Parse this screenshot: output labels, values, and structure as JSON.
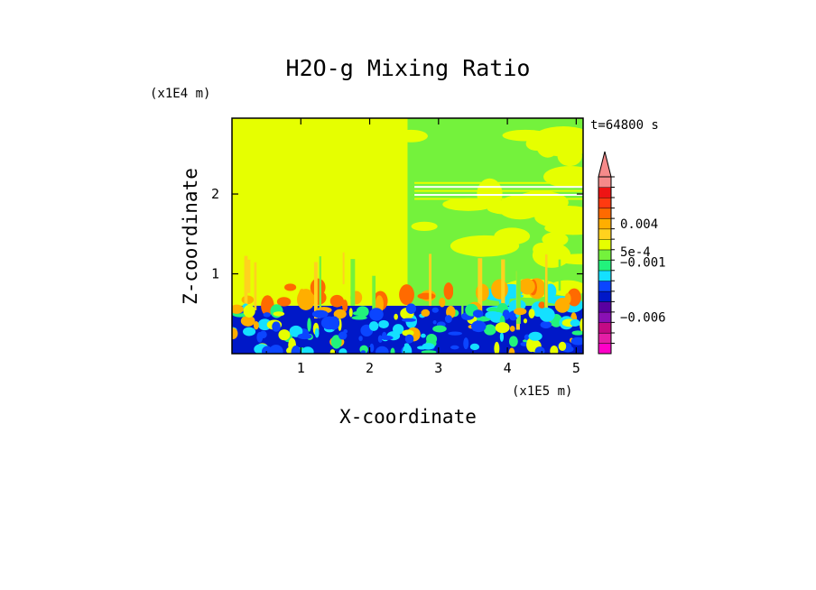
{
  "chart_data": {
    "type": "heatmap",
    "title": "H2O-g Mixing Ratio",
    "xlabel": "X-coordinate",
    "ylabel": "Z-coordinate",
    "x_unit": "(x1E5 m)",
    "y_unit": "(x1E4 m)",
    "time_label": "t=64800 s",
    "xlim": [
      0,
      5.1
    ],
    "ylim": [
      0,
      2.95
    ],
    "x_ticks": [
      1,
      2,
      3,
      4,
      5
    ],
    "y_ticks": [
      1,
      2
    ],
    "x_tick_labels": [
      "1",
      "2",
      "3",
      "4",
      "5"
    ],
    "y_tick_labels": [
      "1",
      "2"
    ],
    "colorbar": {
      "colors": [
        "#ff00c8",
        "#e41ea6",
        "#c40a84",
        "#8a10b4",
        "#5a00a0",
        "#0018c8",
        "#0b45ff",
        "#14e0ff",
        "#22f27c",
        "#74f23c",
        "#e6ff00",
        "#ffd21e",
        "#ffae00",
        "#ff6a00",
        "#ff3a10",
        "#ee1414",
        "#f58a8a"
      ],
      "labels": [
        {
          "text": "0.004",
          "level": 12.5
        },
        {
          "text": "5e-4",
          "level": 9.8
        },
        {
          "text": "−0.001",
          "level": 8.8
        },
        {
          "text": "−0.006",
          "level": 3.5
        }
      ]
    },
    "regions": [
      {
        "name": "upper-left-background",
        "x": [
          0,
          2.55
        ],
        "z": [
          0.6,
          2.95
        ],
        "color": "#e6ff00"
      },
      {
        "name": "upper-right-background",
        "x": [
          2.55,
          5.1
        ],
        "z": [
          0.6,
          2.95
        ],
        "color": "#74f23c"
      },
      {
        "name": "lower-boundary-layer",
        "x": [
          0,
          5.1
        ],
        "z": [
          0,
          0.6
        ],
        "color": "#0018c8"
      }
    ]
  }
}
